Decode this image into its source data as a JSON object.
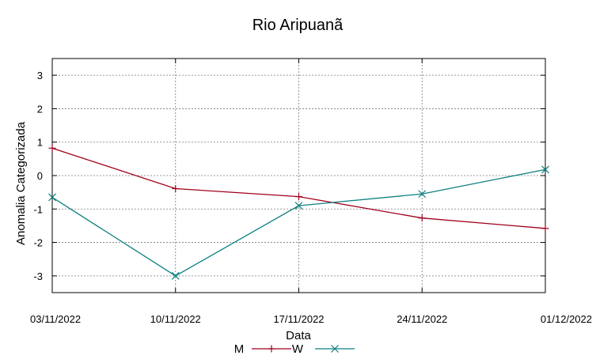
{
  "chart_data": {
    "type": "line",
    "title": "Rio Aripuanã",
    "xlabel": "Data",
    "ylabel": "Anomalia Categorizada",
    "categories": [
      "03/11/2022",
      "10/11/2022",
      "17/11/2022",
      "24/11/2022",
      "01/12/2022"
    ],
    "ylim": [
      -3.5,
      3.5
    ],
    "yticks": [
      3,
      2,
      1,
      0,
      -1,
      -2,
      -3
    ],
    "grid": true,
    "legend_position": "bottom",
    "series": [
      {
        "name": "M",
        "color": "#a0001a",
        "marker": "plus",
        "values": [
          0.82,
          -0.39,
          -0.63,
          -1.27,
          -1.58
        ]
      },
      {
        "name": "W",
        "color": "#0f8080",
        "marker": "cross",
        "values": [
          -0.65,
          -3.0,
          -0.9,
          -0.55,
          0.18
        ]
      }
    ]
  }
}
